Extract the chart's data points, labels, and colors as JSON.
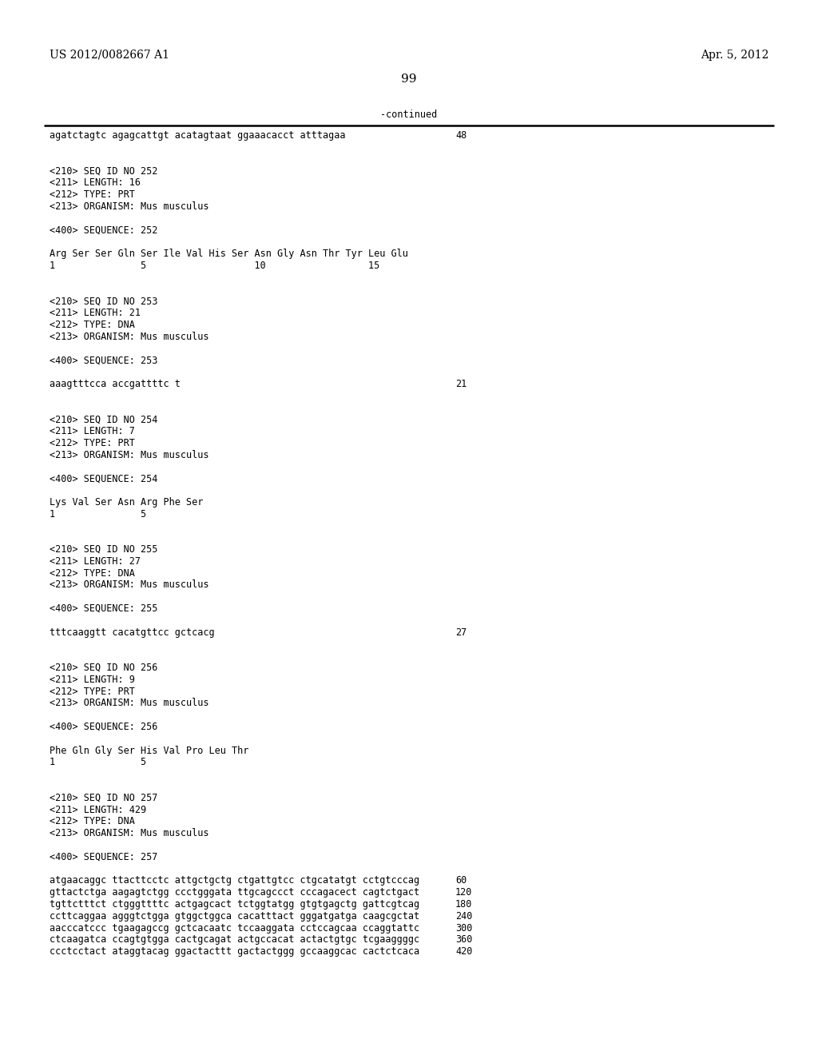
{
  "header_left": "US 2012/0082667 A1",
  "header_right": "Apr. 5, 2012",
  "page_number": "99",
  "continued_label": "-continued",
  "background_color": "#ffffff",
  "text_color": "#000000",
  "font_size_header": 10.0,
  "font_size_body": 8.5,
  "lines": [
    {
      "text": "agatctagtc agagcattgt acatagtaat ggaaacacct atttagaa",
      "right_num": "48"
    },
    {
      "text": ""
    },
    {
      "text": ""
    },
    {
      "text": "<210> SEQ ID NO 252"
    },
    {
      "text": "<211> LENGTH: 16"
    },
    {
      "text": "<212> TYPE: PRT"
    },
    {
      "text": "<213> ORGANISM: Mus musculus"
    },
    {
      "text": ""
    },
    {
      "text": "<400> SEQUENCE: 252"
    },
    {
      "text": ""
    },
    {
      "text": "Arg Ser Ser Gln Ser Ile Val His Ser Asn Gly Asn Thr Tyr Leu Glu"
    },
    {
      "text": "1               5                   10                  15"
    },
    {
      "text": ""
    },
    {
      "text": ""
    },
    {
      "text": "<210> SEQ ID NO 253"
    },
    {
      "text": "<211> LENGTH: 21"
    },
    {
      "text": "<212> TYPE: DNA"
    },
    {
      "text": "<213> ORGANISM: Mus musculus"
    },
    {
      "text": ""
    },
    {
      "text": "<400> SEQUENCE: 253"
    },
    {
      "text": ""
    },
    {
      "text": "aaagtttcca accgattttc t",
      "right_num": "21"
    },
    {
      "text": ""
    },
    {
      "text": ""
    },
    {
      "text": "<210> SEQ ID NO 254"
    },
    {
      "text": "<211> LENGTH: 7"
    },
    {
      "text": "<212> TYPE: PRT"
    },
    {
      "text": "<213> ORGANISM: Mus musculus"
    },
    {
      "text": ""
    },
    {
      "text": "<400> SEQUENCE: 254"
    },
    {
      "text": ""
    },
    {
      "text": "Lys Val Ser Asn Arg Phe Ser"
    },
    {
      "text": "1               5"
    },
    {
      "text": ""
    },
    {
      "text": ""
    },
    {
      "text": "<210> SEQ ID NO 255"
    },
    {
      "text": "<211> LENGTH: 27"
    },
    {
      "text": "<212> TYPE: DNA"
    },
    {
      "text": "<213> ORGANISM: Mus musculus"
    },
    {
      "text": ""
    },
    {
      "text": "<400> SEQUENCE: 255"
    },
    {
      "text": ""
    },
    {
      "text": "tttcaaggtt cacatgttcc gctcacg",
      "right_num": "27"
    },
    {
      "text": ""
    },
    {
      "text": ""
    },
    {
      "text": "<210> SEQ ID NO 256"
    },
    {
      "text": "<211> LENGTH: 9"
    },
    {
      "text": "<212> TYPE: PRT"
    },
    {
      "text": "<213> ORGANISM: Mus musculus"
    },
    {
      "text": ""
    },
    {
      "text": "<400> SEQUENCE: 256"
    },
    {
      "text": ""
    },
    {
      "text": "Phe Gln Gly Ser His Val Pro Leu Thr"
    },
    {
      "text": "1               5"
    },
    {
      "text": ""
    },
    {
      "text": ""
    },
    {
      "text": "<210> SEQ ID NO 257"
    },
    {
      "text": "<211> LENGTH: 429"
    },
    {
      "text": "<212> TYPE: DNA"
    },
    {
      "text": "<213> ORGANISM: Mus musculus"
    },
    {
      "text": ""
    },
    {
      "text": "<400> SEQUENCE: 257"
    },
    {
      "text": ""
    },
    {
      "text": "atgaacaggc ttacttcctc attgctgctg ctgattgtcc ctgcatatgt cctgtcccag",
      "right_num": "60"
    },
    {
      "text": "gttactctga aagagtctgg ccctgggata ttgcagccct cccagacect cagtctgact",
      "right_num": "120"
    },
    {
      "text": "tgttctttct ctgggttttc actgagcact tctggtatgg gtgtgagctg gattcgtcag",
      "right_num": "180"
    },
    {
      "text": "ccttcaggaa agggtctgga gtggctggca cacatttact gggatgatga caagcgctat",
      "right_num": "240"
    },
    {
      "text": "aacccatccc tgaagagccg gctcacaatc tccaaggata cctccagcaa ccaggtattc",
      "right_num": "300"
    },
    {
      "text": "ctcaagatca ccagtgtgga cactgcagat actgccacat actactgtgc tcgaaggggc",
      "right_num": "360"
    },
    {
      "text": "ccctcctact ataggtacag ggactacttt gactactggg gccaaggcac cactctcaca",
      "right_num": "420"
    }
  ]
}
